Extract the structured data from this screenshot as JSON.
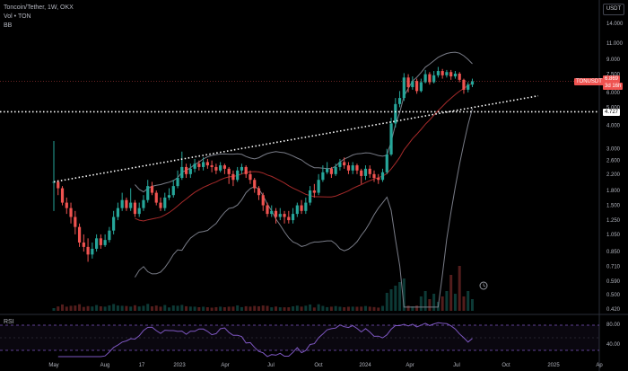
{
  "legend": {
    "symbol": "Toncoin/Tether, 1W, OKX",
    "volume": "Vol • TON",
    "bb": "BB"
  },
  "currency_button": "USDT",
  "rsi_label": "RSI",
  "price_tags": {
    "symbol_tag": "TONUSDT",
    "last_price": "6.869",
    "countdown": "3d 16h",
    "line_price": "4.727"
  },
  "y_axis_labels": [
    "14.000",
    "11.000",
    "9.000",
    "7.500",
    "6.000",
    "5.000",
    "4.000",
    "3.000",
    "2.600",
    "2.200",
    "1.800",
    "1.500",
    "1.250",
    "1.050",
    "0.850",
    "0.710",
    "0.590",
    "0.500",
    "0.420"
  ],
  "rsi_axis_labels": [
    "80.00",
    "40.00"
  ],
  "x_axis_labels": [
    "May",
    "Aug",
    "17",
    "2023",
    "Apr",
    "Jul",
    "Oct",
    "2024",
    "Apr",
    "Jul",
    "Oct",
    "2025",
    "Ap"
  ],
  "colors": {
    "up": "#26a69a",
    "down": "#ef5350",
    "rsi": "#7e57c2",
    "bb": "#787b86",
    "basis": "#a52a2a"
  },
  "chart_data": {
    "type": "candlestick",
    "candles": [
      [
        2.0,
        2.0,
        3.3,
        1.4
      ],
      [
        2.0,
        1.85,
        2.05,
        1.7
      ],
      [
        1.85,
        1.55,
        1.9,
        1.5
      ],
      [
        1.55,
        1.45,
        1.65,
        1.35
      ],
      [
        1.45,
        1.3,
        1.55,
        1.2
      ],
      [
        1.3,
        1.15,
        1.4,
        1.05
      ],
      [
        1.15,
        0.95,
        1.2,
        0.9
      ],
      [
        0.95,
        0.9,
        1.05,
        0.85
      ],
      [
        0.9,
        0.82,
        1.0,
        0.75
      ],
      [
        0.82,
        0.88,
        0.95,
        0.78
      ],
      [
        0.88,
        1.0,
        1.05,
        0.85
      ],
      [
        1.0,
        0.92,
        1.05,
        0.88
      ],
      [
        0.92,
        0.98,
        1.05,
        0.9
      ],
      [
        0.98,
        1.1,
        1.15,
        0.95
      ],
      [
        1.1,
        1.3,
        1.4,
        1.05
      ],
      [
        1.3,
        1.45,
        1.55,
        1.25
      ],
      [
        1.45,
        1.6,
        1.75,
        1.4
      ],
      [
        1.6,
        1.45,
        1.65,
        1.4
      ],
      [
        1.45,
        1.55,
        1.85,
        1.4
      ],
      [
        1.55,
        1.35,
        1.6,
        1.3
      ],
      [
        1.35,
        1.45,
        1.55,
        1.3
      ],
      [
        1.45,
        1.6,
        1.7,
        1.4
      ],
      [
        1.6,
        1.9,
        2.05,
        1.55
      ],
      [
        1.9,
        1.75,
        2.0,
        1.7
      ],
      [
        1.75,
        1.55,
        1.8,
        1.5
      ],
      [
        1.55,
        1.45,
        1.65,
        1.4
      ],
      [
        1.45,
        1.65,
        1.75,
        1.4
      ],
      [
        1.65,
        1.7,
        1.85,
        1.6
      ],
      [
        1.7,
        1.9,
        2.05,
        1.65
      ],
      [
        1.9,
        2.1,
        2.3,
        1.85
      ],
      [
        2.1,
        2.4,
        2.9,
        2.05
      ],
      [
        2.4,
        2.2,
        2.5,
        2.1
      ],
      [
        2.2,
        2.35,
        2.5,
        2.1
      ],
      [
        2.35,
        2.5,
        2.65,
        2.25
      ],
      [
        2.5,
        2.4,
        2.6,
        2.3
      ],
      [
        2.4,
        2.55,
        2.7,
        2.3
      ],
      [
        2.55,
        2.45,
        2.65,
        2.35
      ],
      [
        2.45,
        2.4,
        2.6,
        2.25
      ],
      [
        2.4,
        2.3,
        2.5,
        2.2
      ],
      [
        2.3,
        2.45,
        2.55,
        2.25
      ],
      [
        2.45,
        2.35,
        2.5,
        2.2
      ],
      [
        2.35,
        2.2,
        2.4,
        1.95
      ],
      [
        2.2,
        2.05,
        2.3,
        1.9
      ],
      [
        2.05,
        2.3,
        2.4,
        2.0
      ],
      [
        2.3,
        2.4,
        2.5,
        2.2
      ],
      [
        2.4,
        2.2,
        2.45,
        2.1
      ],
      [
        2.2,
        2.05,
        2.3,
        1.95
      ],
      [
        2.05,
        1.85,
        2.1,
        1.75
      ],
      [
        1.85,
        1.7,
        1.9,
        1.6
      ],
      [
        1.7,
        1.5,
        1.75,
        1.4
      ],
      [
        1.5,
        1.35,
        1.55,
        1.3
      ],
      [
        1.35,
        1.4,
        1.5,
        1.3
      ],
      [
        1.4,
        1.3,
        1.45,
        1.2
      ],
      [
        1.3,
        1.35,
        1.45,
        1.25
      ],
      [
        1.35,
        1.3,
        1.4,
        1.2
      ],
      [
        1.3,
        1.25,
        1.4,
        1.2
      ],
      [
        1.25,
        1.35,
        1.45,
        1.2
      ],
      [
        1.35,
        1.5,
        1.55,
        1.3
      ],
      [
        1.5,
        1.4,
        1.6,
        1.35
      ],
      [
        1.4,
        1.55,
        1.65,
        1.35
      ],
      [
        1.55,
        1.8,
        1.9,
        1.5
      ],
      [
        1.8,
        1.75,
        1.95,
        1.65
      ],
      [
        1.75,
        2.05,
        2.2,
        1.7
      ],
      [
        2.05,
        2.25,
        2.45,
        2.0
      ],
      [
        2.25,
        2.35,
        2.55,
        2.2
      ],
      [
        2.35,
        2.2,
        2.4,
        2.1
      ],
      [
        2.2,
        2.4,
        2.5,
        2.15
      ],
      [
        2.4,
        2.55,
        2.65,
        2.3
      ],
      [
        2.55,
        2.45,
        2.7,
        2.35
      ],
      [
        2.45,
        2.3,
        2.55,
        2.2
      ],
      [
        2.3,
        2.45,
        2.55,
        2.2
      ],
      [
        2.45,
        2.3,
        2.5,
        2.2
      ],
      [
        2.3,
        2.15,
        2.35,
        1.95
      ],
      [
        2.15,
        2.35,
        2.45,
        2.05
      ],
      [
        2.35,
        2.2,
        2.45,
        2.1
      ],
      [
        2.2,
        2.1,
        2.3,
        2.0
      ],
      [
        2.1,
        2.05,
        2.2,
        1.95
      ],
      [
        2.05,
        2.25,
        2.35,
        2.0
      ],
      [
        2.25,
        2.8,
        3.0,
        2.2
      ],
      [
        2.8,
        4.1,
        4.4,
        2.75
      ],
      [
        4.1,
        5.2,
        5.6,
        3.9
      ],
      [
        5.2,
        5.6,
        6.1,
        5.0
      ],
      [
        5.6,
        7.2,
        7.6,
        5.4
      ],
      [
        7.2,
        6.4,
        7.5,
        6.0
      ],
      [
        6.4,
        6.9,
        7.3,
        6.2
      ],
      [
        6.9,
        6.1,
        7.1,
        5.9
      ],
      [
        6.1,
        6.8,
        7.1,
        6.0
      ],
      [
        6.8,
        7.5,
        7.9,
        6.7
      ],
      [
        7.5,
        6.8,
        7.7,
        6.6
      ],
      [
        6.8,
        7.4,
        7.8,
        6.7
      ],
      [
        7.4,
        7.8,
        8.2,
        7.2
      ],
      [
        7.8,
        7.4,
        8.0,
        7.1
      ],
      [
        7.4,
        7.7,
        7.9,
        7.2
      ],
      [
        7.7,
        7.3,
        7.9,
        7.0
      ],
      [
        7.3,
        7.55,
        7.8,
        7.1
      ],
      [
        7.55,
        7.0,
        7.7,
        6.8
      ],
      [
        7.0,
        6.2,
        7.1,
        5.9
      ],
      [
        6.2,
        6.6,
        6.8,
        6.0
      ],
      [
        6.6,
        6.87,
        7.1,
        6.4
      ]
    ],
    "ylim": [
      0.42,
      14.0
    ],
    "scale": "log"
  }
}
